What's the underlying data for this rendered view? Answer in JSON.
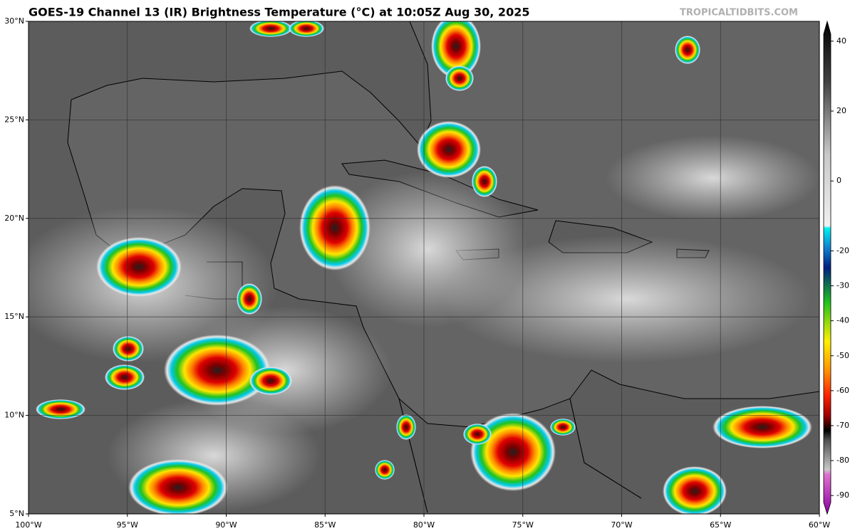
{
  "header": {
    "title": "GOES-19 Channel 13 (IR) Brightness Temperature (°C) at 10:05Z Aug 30, 2025",
    "credit": "TROPICALTIDBITS.COM"
  },
  "map": {
    "xlim": [
      -100,
      -60
    ],
    "ylim": [
      5,
      30
    ],
    "xticks": [
      {
        "value": -100,
        "label": "100°W"
      },
      {
        "value": -95,
        "label": "95°W"
      },
      {
        "value": -90,
        "label": "90°W"
      },
      {
        "value": -85,
        "label": "85°W"
      },
      {
        "value": -80,
        "label": "80°W"
      },
      {
        "value": -75,
        "label": "75°W"
      },
      {
        "value": -70,
        "label": "70°W"
      },
      {
        "value": -65,
        "label": "65°W"
      },
      {
        "value": -60,
        "label": "60°W"
      }
    ],
    "yticks": [
      {
        "value": 5,
        "label": "5°N"
      },
      {
        "value": 10,
        "label": "10°N"
      },
      {
        "value": 15,
        "label": "15°N"
      },
      {
        "value": 20,
        "label": "20°N"
      },
      {
        "value": 25,
        "label": "25°N"
      },
      {
        "value": 30,
        "label": "30°N"
      }
    ]
  },
  "colorbar": {
    "lim": [
      -92,
      42
    ],
    "ticks": [
      40,
      20,
      0,
      -20,
      -30,
      -40,
      -50,
      -60,
      -70,
      -80,
      -90
    ]
  }
}
